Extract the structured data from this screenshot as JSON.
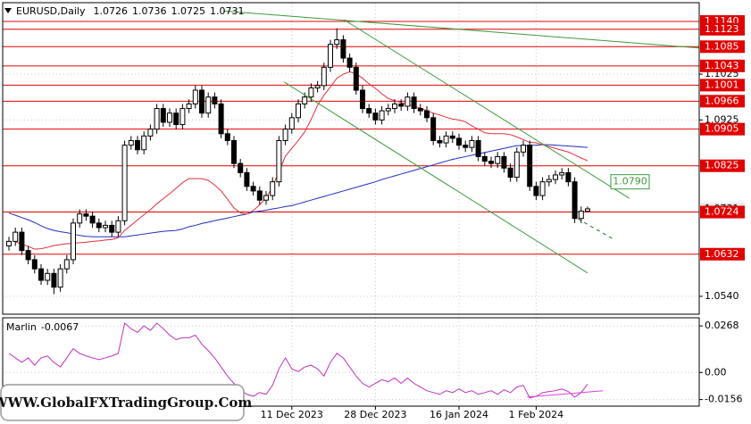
{
  "chart_data": [
    {
      "type": "candlestick",
      "title": "EURUSD,Daily",
      "categories": [
        null,
        null,
        null,
        null,
        null,
        null,
        null,
        null,
        null,
        null,
        null,
        null,
        null,
        null,
        null,
        null,
        null,
        null,
        null,
        null,
        null,
        null,
        null,
        null,
        null,
        null,
        null,
        null,
        null,
        null,
        null,
        null,
        null,
        null,
        null,
        null,
        null,
        null,
        null,
        null,
        null,
        null,
        null,
        null,
        "11 Dec 2023",
        null,
        null,
        null,
        null,
        null,
        null,
        null,
        null,
        null,
        null,
        null,
        null,
        "28 Dec 2023",
        null,
        null,
        null,
        null,
        null,
        null,
        null,
        null,
        null,
        null,
        null,
        null,
        "16 Jan 2024",
        null,
        null,
        null,
        null,
        null,
        null,
        null,
        null,
        null,
        null,
        null,
        "1 Feb 2024",
        null,
        null,
        null,
        null,
        null,
        null,
        null,
        null
      ],
      "open": [
        1.065,
        1.066,
        1.068,
        1.064,
        1.062,
        1.06,
        1.0575,
        1.059,
        1.056,
        1.06,
        1.062,
        1.07,
        1.072,
        1.0715,
        1.07,
        1.069,
        1.0695,
        1.068,
        1.0705,
        1.087,
        1.088,
        1.086,
        1.089,
        1.0905,
        1.095,
        1.092,
        1.094,
        1.0915,
        1.095,
        1.096,
        1.099,
        1.094,
        1.0975,
        1.096,
        1.0895,
        1.088,
        1.083,
        1.081,
        1.078,
        1.077,
        1.075,
        1.076,
        1.079,
        1.088,
        1.0905,
        1.093,
        1.096,
        1.0975,
        1.0995,
        1.1,
        1.104,
        1.109,
        1.11,
        1.106,
        1.104,
        1.099,
        1.095,
        1.094,
        1.0925,
        1.0945,
        1.095,
        1.096,
        1.0955,
        1.0975,
        1.095,
        1.0945,
        1.093,
        1.088,
        1.0875,
        1.089,
        1.0885,
        1.087,
        1.0865,
        1.088,
        1.0845,
        1.0835,
        1.083,
        1.0845,
        1.082,
        1.08,
        1.0855,
        1.087,
        1.078,
        1.076,
        1.079,
        1.0795,
        1.0805,
        1.081,
        1.079,
        1.071,
        1.0726
      ],
      "high": [
        1.067,
        1.069,
        1.069,
        1.065,
        1.063,
        1.061,
        1.06,
        1.06,
        1.061,
        1.063,
        1.071,
        1.073,
        1.073,
        1.0725,
        1.071,
        1.0705,
        1.0705,
        1.0715,
        1.088,
        1.089,
        1.089,
        1.09,
        1.0915,
        1.096,
        1.096,
        1.095,
        1.095,
        1.096,
        1.097,
        1.1,
        1.1,
        1.0985,
        1.0985,
        1.097,
        1.0905,
        1.089,
        1.084,
        1.082,
        1.079,
        1.078,
        1.077,
        1.08,
        1.089,
        1.0915,
        1.094,
        1.097,
        1.0985,
        1.1005,
        1.101,
        1.105,
        1.11,
        1.1125,
        1.111,
        1.107,
        1.105,
        1.1,
        1.096,
        1.095,
        1.0955,
        1.096,
        1.097,
        1.097,
        1.0985,
        1.0985,
        1.096,
        1.0955,
        1.094,
        1.089,
        1.09,
        1.09,
        1.0895,
        1.088,
        1.089,
        1.089,
        1.0855,
        1.0845,
        1.0855,
        1.0855,
        1.083,
        1.0865,
        1.088,
        1.088,
        1.079,
        1.08,
        1.0805,
        1.0815,
        1.082,
        1.082,
        1.08,
        1.0736,
        1.0736
      ],
      "low": [
        1.064,
        1.065,
        1.063,
        1.061,
        1.059,
        1.0565,
        1.0565,
        1.0545,
        1.055,
        1.059,
        1.061,
        1.069,
        1.0705,
        1.069,
        1.068,
        1.068,
        1.067,
        1.067,
        1.0695,
        1.086,
        1.085,
        1.085,
        1.088,
        1.0895,
        1.091,
        1.091,
        1.0905,
        1.0905,
        1.094,
        1.095,
        1.093,
        1.093,
        1.095,
        1.0885,
        1.087,
        1.082,
        1.08,
        1.077,
        1.076,
        1.074,
        1.074,
        1.075,
        1.078,
        1.087,
        1.0895,
        1.092,
        1.095,
        1.0965,
        1.0985,
        1.099,
        1.103,
        1.108,
        1.105,
        1.103,
        1.098,
        1.094,
        1.093,
        1.0915,
        1.0915,
        1.0935,
        1.094,
        1.0945,
        1.0945,
        1.094,
        1.0935,
        1.092,
        1.087,
        1.0865,
        1.0865,
        1.0875,
        1.086,
        1.0855,
        1.0855,
        1.0835,
        1.0825,
        1.082,
        1.082,
        1.081,
        1.079,
        1.079,
        1.0845,
        1.077,
        1.075,
        1.075,
        1.078,
        1.0785,
        1.0795,
        1.078,
        1.07,
        1.07,
        1.0725
      ],
      "close": [
        1.066,
        1.068,
        1.064,
        1.062,
        1.06,
        1.0575,
        1.059,
        1.056,
        1.06,
        1.062,
        1.07,
        1.072,
        1.0715,
        1.07,
        1.069,
        1.0695,
        1.068,
        1.0705,
        1.087,
        1.088,
        1.086,
        1.089,
        1.0905,
        1.095,
        1.092,
        1.094,
        1.0915,
        1.095,
        1.096,
        1.099,
        1.094,
        1.0975,
        1.096,
        1.0895,
        1.088,
        1.083,
        1.081,
        1.078,
        1.077,
        1.075,
        1.076,
        1.079,
        1.088,
        1.0905,
        1.093,
        1.096,
        1.0975,
        1.0995,
        1.1,
        1.104,
        1.109,
        1.11,
        1.106,
        1.104,
        1.099,
        1.095,
        1.094,
        1.0925,
        1.0945,
        1.095,
        1.096,
        1.0955,
        1.0975,
        1.095,
        1.0945,
        1.093,
        1.088,
        1.0875,
        1.089,
        1.0885,
        1.087,
        1.0865,
        1.088,
        1.0845,
        1.0835,
        1.083,
        1.0845,
        1.082,
        1.08,
        1.0855,
        1.087,
        1.078,
        1.076,
        1.079,
        1.0795,
        1.0805,
        1.081,
        1.079,
        1.071,
        1.0726,
        1.0731
      ],
      "series": [
        {
          "color": "#1f2fc0",
          "values": [
            1.0722,
            1.0717,
            1.0712,
            1.0707,
            1.0701,
            1.0694,
            1.0688,
            1.0684,
            1.0681,
            1.0679,
            1.0676,
            1.0673,
            1.0671,
            1.067,
            1.067,
            1.067,
            1.067,
            1.067,
            1.067,
            1.0672,
            1.0674,
            1.0676,
            1.0678,
            1.068,
            1.0682,
            1.0683,
            1.0684,
            1.0687,
            1.0692,
            1.0695,
            1.0699,
            1.0702,
            1.0705,
            1.0708,
            1.0711,
            1.0714,
            1.0717,
            1.072,
            1.0724,
            1.0726,
            1.0728,
            1.0731,
            1.0733,
            1.0736,
            1.0738,
            1.0742,
            1.0746,
            1.075,
            1.0754,
            1.0758,
            1.0762,
            1.0766,
            1.077,
            1.0774,
            1.0778,
            1.0782,
            1.0786,
            1.079,
            1.0795,
            1.0799,
            1.0803,
            1.0807,
            1.0811,
            1.0815,
            1.0819,
            1.0823,
            1.0827,
            1.0831,
            1.0835,
            1.0839,
            1.0842,
            1.0845,
            1.0848,
            1.0851,
            1.0854,
            1.0857,
            1.086,
            1.0863,
            1.0866,
            1.0869,
            1.0869,
            1.087,
            1.087,
            1.0871,
            1.0871,
            1.087,
            1.0869,
            1.0868,
            1.0867,
            1.0866,
            1.0865
          ]
        },
        {
          "color": "#e0303a",
          "values": [
            null,
            1.0659,
            1.0654,
            1.0649,
            1.0643,
            1.0644,
            1.0647,
            1.0651,
            1.0653,
            1.0655,
            1.0656,
            1.0657,
            1.0658,
            1.066,
            1.0661,
            1.0663,
            1.0664,
            1.0668,
            1.0684,
            1.0695,
            1.0707,
            1.0718,
            1.0729,
            1.0742,
            1.0753,
            1.0764,
            1.0776,
            1.0788,
            1.0797,
            1.0797,
            1.0797,
            1.0793,
            1.0783,
            1.077,
            1.0752,
            1.0733,
            1.0722,
            1.072,
            1.0727,
            1.074,
            1.0754,
            1.078,
            1.0812,
            1.0846,
            1.0863,
            1.088,
            1.0899,
            1.0926,
            1.0957,
            1.0979,
            1.0997,
            1.1016,
            1.1025,
            1.103,
            1.1026,
            1.1016,
            1.1004,
            1.0994,
            1.0982,
            1.0972,
            1.0967,
            1.0963,
            1.0959,
            1.0955,
            1.0951,
            1.0945,
            1.094,
            1.0936,
            1.0931,
            1.0927,
            1.0925,
            1.0921,
            1.0912,
            1.0905,
            1.0897,
            1.0895,
            1.0895,
            1.0895,
            1.0893,
            1.0888,
            1.0882,
            1.0876,
            1.0875,
            1.0871,
            1.0867,
            1.0863,
            1.0859,
            1.0855,
            1.0849,
            1.0842,
            1.0836
          ]
        }
      ],
      "levels": [
        {
          "value": 1.114,
          "label": "1.1140"
        },
        1.1123,
        1.1085,
        1.1043,
        1.1001,
        1.0966,
        1.0905,
        1.0825,
        1.0724,
        1.0632
      ],
      "level_color": "#e00000",
      "trendlines": [
        {
          "x": [
            33.3,
            107.4
          ],
          "values": [
            1.1163,
            1.1082
          ],
          "color": "#3c9a3c"
        },
        {
          "x": [
            52.1,
            96.5
          ],
          "values": [
            1.1144,
            1.0754
          ],
          "color": "#3c9a3c"
        },
        {
          "x": [
            42.8,
            90
          ],
          "values": [
            1.1008,
            1.0591
          ],
          "color": "#3c9a3c"
        },
        {
          "x": [
            88.5,
            94
          ],
          "values": [
            1.0709,
            1.0665
          ],
          "color": "#2a6a2a",
          "dashed": true
        }
      ],
      "annotation": {
        "value": 1.079,
        "label": "1.0790",
        "color": "#3c9a3c"
      },
      "last_price": 1.0731,
      "ylim": [
        1.0501,
        1.1181
      ],
      "yticks": [
        1.1025,
        1.0925,
        {
          "value": 1.054,
          "label": "1.0540"
        }
      ],
      "grid": true
    },
    {
      "type": "line",
      "series": [
        {
          "name": "Marlin",
          "color": "#c030c0",
          "values": [
            0.011,
            0.0084,
            0.0058,
            0.0084,
            0.0042,
            0.0084,
            0.0095,
            0.0058,
            0.0032,
            0.0084,
            0.0137,
            0.011,
            0.0095,
            0.0084,
            0.0074,
            0.0084,
            0.0095,
            0.011,
            0.0284,
            0.0252,
            0.0231,
            0.0268,
            0.0242,
            0.0284,
            0.0252,
            0.0215,
            0.0189,
            0.02,
            0.02,
            0.0215,
            0.0163,
            0.0126,
            0.0084,
            0.0032,
            -0.0021,
            -0.0063,
            -0.01,
            -0.0126,
            -0.0137,
            -0.0116,
            -0.0126,
            -0.0074,
            0.0021,
            0.0084,
            0.0021,
            0.0005,
            0.0032,
            0.0042,
            0.0021,
            -0.0021,
            0.0058,
            0.011,
            0.0084,
            0.0032,
            -0.0021,
            -0.0063,
            -0.0084,
            -0.0063,
            -0.0042,
            -0.0053,
            -0.0032,
            -0.0063,
            -0.0032,
            -0.0063,
            -0.0084,
            -0.0105,
            -0.0116,
            -0.0126,
            -0.0105,
            -0.0116,
            -0.0095,
            -0.0116,
            -0.0105,
            -0.0126,
            -0.0116,
            -0.0105,
            -0.0126,
            -0.01,
            -0.0116,
            -0.0084,
            -0.0074,
            -0.0147,
            -0.0137,
            -0.0116,
            -0.011,
            -0.0105,
            -0.0095,
            -0.011,
            -0.0142,
            -0.0116,
            -0.0067
          ]
        }
      ],
      "trendlines": [
        {
          "x": [
            80.6,
            92.4
          ],
          "values": [
            -0.0142,
            -0.0105
          ],
          "color": "#e040e0"
        }
      ],
      "ylim": [
        -0.0194,
        0.0315
      ],
      "yticks": [
        0.0268,
        {
          "value": 0,
          "label": "0.00"
        },
        -0.0156
      ],
      "grid": true
    }
  ],
  "watermark": "WWW.GlobalFXTradingGroup.Com"
}
